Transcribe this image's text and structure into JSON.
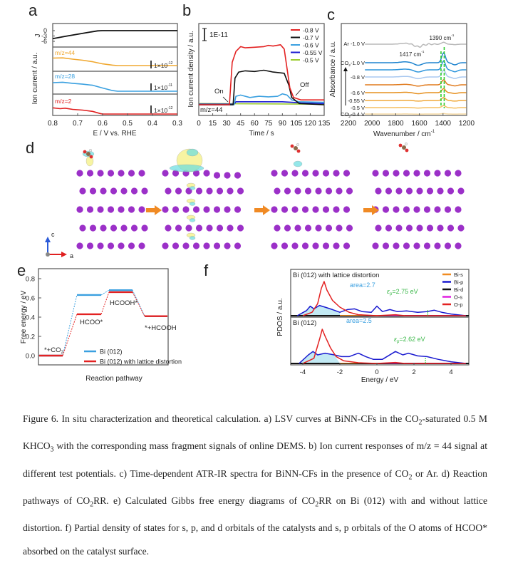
{
  "panel_labels": {
    "a": "a",
    "b": "b",
    "c": "c",
    "d": "d",
    "e": "e",
    "f": "f"
  },
  "chart_data": [
    {
      "panel": "a",
      "type": "line",
      "xlabel": "E / V vs. RHE",
      "ylabel": "Ion current / a.u.",
      "j_label": "J",
      "xlim": [
        0.8,
        0.3
      ],
      "xticks": [
        "0.8",
        "0.7",
        "0.6",
        "0.5",
        "0.4",
        "0.3"
      ],
      "j_ticks": [
        "0",
        "-3",
        "-6"
      ],
      "j_curve": [
        [
          0.8,
          -4.5
        ],
        [
          0.75,
          -3.2
        ],
        [
          0.7,
          -2.0
        ],
        [
          0.65,
          -0.8
        ],
        [
          0.62,
          -0.1
        ],
        [
          0.6,
          0
        ],
        [
          0.3,
          0
        ]
      ],
      "series": [
        {
          "name": "m/z=44",
          "color": "#f0a830",
          "scale": "1×10",
          "exp": "-12",
          "points": [
            [
              0.8,
              0.35
            ],
            [
              0.76,
              0.36
            ],
            [
              0.72,
              0.3
            ],
            [
              0.68,
              0.25
            ],
            [
              0.64,
              0.18
            ],
            [
              0.6,
              0.08
            ],
            [
              0.56,
              0.02
            ],
            [
              0.54,
              0
            ],
            [
              0.3,
              0
            ]
          ]
        },
        {
          "name": "m/z=28",
          "color": "#3aa0e0",
          "scale": "1×10",
          "exp": "-11",
          "points": [
            [
              0.8,
              0.4
            ],
            [
              0.76,
              0.42
            ],
            [
              0.72,
              0.37
            ],
            [
              0.68,
              0.33
            ],
            [
              0.64,
              0.28
            ],
            [
              0.6,
              0.15
            ],
            [
              0.56,
              0.03
            ],
            [
              0.54,
              0
            ],
            [
              0.3,
              0
            ]
          ]
        },
        {
          "name": "m/z=2",
          "color": "#e02020",
          "scale": "1×10",
          "exp": "-12",
          "points": [
            [
              0.8,
              0.35
            ],
            [
              0.77,
              0.3
            ],
            [
              0.75,
              0.33
            ],
            [
              0.72,
              0.26
            ],
            [
              0.68,
              0.22
            ],
            [
              0.64,
              0.15
            ],
            [
              0.61,
              0.03
            ],
            [
              0.6,
              0
            ],
            [
              0.3,
              0
            ]
          ]
        }
      ]
    },
    {
      "panel": "b",
      "type": "line",
      "xlabel": "Time / s",
      "ylabel": "Ion current density / a.u.",
      "xlim": [
        0,
        135
      ],
      "xticks": [
        "0",
        "15",
        "30",
        "45",
        "60",
        "75",
        "90",
        "105",
        "120",
        "135"
      ],
      "scale_bar": "1E-11",
      "annotation": "m/z=44",
      "on_label": "On",
      "off_label": "Off",
      "legend_position": "top-right",
      "series": [
        {
          "name": "-0.8 V",
          "color": "#e32222",
          "points": [
            [
              0,
              0
            ],
            [
              33,
              0
            ],
            [
              36,
              3.5
            ],
            [
              40,
              4.4
            ],
            [
              45,
              4.8
            ],
            [
              50,
              4.7
            ],
            [
              60,
              4.75
            ],
            [
              70,
              4.8
            ],
            [
              75,
              4.9
            ],
            [
              80,
              4.85
            ],
            [
              88,
              4.95
            ],
            [
              92,
              4.6
            ],
            [
              98,
              1.4
            ],
            [
              102,
              0.6
            ],
            [
              110,
              0.4
            ],
            [
              135,
              0.4
            ]
          ]
        },
        {
          "name": "-0.7 V",
          "color": "#111111",
          "points": [
            [
              0,
              0
            ],
            [
              37,
              0
            ],
            [
              39,
              2.2
            ],
            [
              43,
              2.7
            ],
            [
              50,
              2.8
            ],
            [
              60,
              2.75
            ],
            [
              70,
              2.85
            ],
            [
              80,
              2.7
            ],
            [
              92,
              2.6
            ],
            [
              97,
              1.6
            ],
            [
              100,
              0.6
            ],
            [
              108,
              0.1
            ],
            [
              135,
              0
            ]
          ]
        },
        {
          "name": "-0.6 V",
          "color": "#3aa0e0",
          "points": [
            [
              0,
              0
            ],
            [
              38,
              0
            ],
            [
              40,
              0.7
            ],
            [
              45,
              0.8
            ],
            [
              55,
              0.6
            ],
            [
              65,
              0.7
            ],
            [
              75,
              0.65
            ],
            [
              85,
              0.7
            ],
            [
              90,
              0.9
            ],
            [
              95,
              0.8
            ],
            [
              100,
              0.4
            ],
            [
              108,
              0.25
            ],
            [
              135,
              0.2
            ]
          ]
        },
        {
          "name": "-0.55 V",
          "color": "#1a1ad0",
          "points": [
            [
              0,
              0.05
            ],
            [
              38,
              0.05
            ],
            [
              40,
              0.25
            ],
            [
              90,
              0.25
            ],
            [
              100,
              0.2
            ],
            [
              110,
              0.15
            ],
            [
              135,
              0.1
            ]
          ]
        },
        {
          "name": "-0.5 V",
          "color": "#9ccc30",
          "points": [
            [
              0,
              0.1
            ],
            [
              135,
              0.05
            ]
          ]
        }
      ]
    },
    {
      "panel": "c",
      "type": "line",
      "xlabel": "Wavenumber / cm",
      "xlabel_sup": "-1",
      "ylabel": "Absorbance / a.u.",
      "xlim": [
        2200,
        1200
      ],
      "xticks": [
        "2200",
        "2000",
        "1800",
        "1600",
        "1400",
        "1200"
      ],
      "annotations": [
        {
          "text": "1390 cm",
          "sup": "-1"
        },
        {
          "text": "1417 cm",
          "sup": "-1"
        }
      ],
      "series": [
        {
          "name": "Ar -1.0 V",
          "color": "#b8b8b8",
          "peak": 0.2,
          "dip": 0.6,
          "show_label": true
        },
        {
          "name": "CO2-1.0 V",
          "label_main": "CO",
          "label_sub": "2",
          "label_rest": "-1.0 V",
          "color": "#1f84cf",
          "peak": 1.0,
          "dip": 0.6,
          "show_label": true
        },
        {
          "name": "",
          "color": "#2f96dc",
          "peak": 0.9,
          "dip": 0.5,
          "show_label": false
        },
        {
          "name": "-0.8 V",
          "color": "#a8c8f0",
          "peak": 0.7,
          "dip": 0.4,
          "show_label": true
        },
        {
          "name": "",
          "color": "#e07a1c",
          "peak": 0.5,
          "dip": 0.3,
          "show_label": false
        },
        {
          "name": "-0.6 V",
          "color": "#e6901f",
          "peak": 0.4,
          "dip": 0.25,
          "show_label": true
        },
        {
          "name": "-0.55 V",
          "color": "#f0a83a",
          "peak": 0.3,
          "dip": 0.15,
          "show_label": true
        },
        {
          "name": "-0.5 V",
          "color": "#f5bf60",
          "peak": 0.2,
          "dip": 0.1,
          "show_label": true
        },
        {
          "name": "CO2-0.4 V",
          "label_main": "CO",
          "label_sub": "2",
          "label_rest": "-0.4 V",
          "color": "#f5d8a0",
          "peak": 0.05,
          "dip": 0.03,
          "show_label": true
        }
      ]
    },
    {
      "panel": "e",
      "type": "line",
      "xlabel": "Reaction pathway",
      "ylabel": "Free energy / eV",
      "ylim": [
        -0.1,
        0.9
      ],
      "yticks": [
        "0.0",
        "0.2",
        "0.4",
        "0.6",
        "0.8"
      ],
      "states": [
        "*+CO2",
        "HCOO*",
        "HCOOH*",
        "*+HCOOH"
      ],
      "state_labels": [
        {
          "main": "*+CO",
          "sub": "2"
        },
        {
          "main": "HCOO*"
        },
        {
          "main": "HCOOH*"
        },
        {
          "main": "*+HCOOH"
        }
      ],
      "legend_position": "bottom-right",
      "series": [
        {
          "name": "Bi (012)",
          "color": "#3aa0e0",
          "values": [
            0,
            0.63,
            0.68,
            0.41
          ]
        },
        {
          "name": "Bi (012) with lattice distortion",
          "color": "#e32222",
          "values": [
            0,
            0.43,
            0.66,
            0.41
          ]
        }
      ]
    },
    {
      "panel": "f",
      "type": "line",
      "xlabel": "Energy / eV",
      "ylabel": "PDOS / a.u.",
      "xlim": [
        -5,
        5
      ],
      "xticks": [
        "-4",
        "-2",
        "0",
        "2",
        "4"
      ],
      "legend": [
        {
          "name": "Bi-s",
          "color": "#f08c20"
        },
        {
          "name": "Bi-p",
          "color": "#1a1ad0"
        },
        {
          "name": "Bi-d",
          "color": "#111111"
        },
        {
          "name": "O-s",
          "color": "#e020e0"
        },
        {
          "name": "O-p",
          "color": "#e32222"
        }
      ],
      "subplots": [
        {
          "title": "Bi (012) with lattice distortion",
          "area_label": "area=2.7",
          "eps_symbol": "ε",
          "eps_sub": "p",
          "eps_label": "=2.75 eV",
          "eps_value": 2.75,
          "bi_p": [
            [
              -4.3,
              0
            ],
            [
              -3.8,
              0.15
            ],
            [
              -3.6,
              0.28
            ],
            [
              -3.4,
              0.2
            ],
            [
              -3.1,
              0.3
            ],
            [
              -2.8,
              0.25
            ],
            [
              -2.4,
              0.18
            ],
            [
              -2.0,
              0.1
            ],
            [
              -1.6,
              0.18
            ],
            [
              -1.2,
              0.2
            ],
            [
              -0.8,
              0.12
            ],
            [
              -0.3,
              0.1
            ],
            [
              0,
              0.28
            ],
            [
              0.3,
              0.12
            ],
            [
              0.7,
              0.18
            ],
            [
              1.1,
              0.12
            ],
            [
              1.6,
              0.14
            ],
            [
              2.2,
              0.1
            ],
            [
              2.7,
              0.12
            ],
            [
              3.1,
              0.16
            ],
            [
              3.5,
              0.1
            ],
            [
              4.0,
              0.05
            ],
            [
              4.8,
              0
            ]
          ],
          "o_p": [
            [
              -4,
              0
            ],
            [
              -3.5,
              0.1
            ],
            [
              -3.2,
              0.35
            ],
            [
              -3.0,
              0.8
            ],
            [
              -2.85,
              1.0
            ],
            [
              -2.7,
              0.75
            ],
            [
              -2.4,
              0.45
            ],
            [
              -2.0,
              0.25
            ],
            [
              -1.5,
              0.1
            ],
            [
              -1,
              0.03
            ],
            [
              0,
              0
            ],
            [
              1,
              0.03
            ],
            [
              1.5,
              0
            ],
            [
              4.8,
              0
            ]
          ]
        },
        {
          "title": "Bi (012)",
          "area_label": "area=2.5",
          "eps_symbol": "ε",
          "eps_sub": "p",
          "eps_label": "=2.62 eV",
          "eps_value": 2.62,
          "bi_p": [
            [
              -4.2,
              0
            ],
            [
              -3.7,
              0.25
            ],
            [
              -3.45,
              0.35
            ],
            [
              -3.2,
              0.25
            ],
            [
              -2.8,
              0.3
            ],
            [
              -2.3,
              0.25
            ],
            [
              -1.9,
              0.2
            ],
            [
              -1.5,
              0.2
            ],
            [
              -1.0,
              0.3
            ],
            [
              -0.6,
              0.2
            ],
            [
              -0.2,
              0.12
            ],
            [
              0.3,
              0.12
            ],
            [
              1.0,
              0.35
            ],
            [
              1.4,
              0.25
            ],
            [
              1.7,
              0.3
            ],
            [
              2.2,
              0.22
            ],
            [
              2.7,
              0.2
            ],
            [
              3.3,
              0.12
            ],
            [
              4,
              0.05
            ],
            [
              4.8,
              0
            ]
          ],
          "o_p": [
            [
              -4,
              0
            ],
            [
              -3.4,
              0.15
            ],
            [
              -3.1,
              0.7
            ],
            [
              -2.95,
              1.0
            ],
            [
              -2.8,
              0.8
            ],
            [
              -2.5,
              0.45
            ],
            [
              -2.2,
              0.2
            ],
            [
              -1.8,
              0.08
            ],
            [
              -1,
              0.02
            ],
            [
              0,
              0
            ],
            [
              1,
              0.03
            ],
            [
              1.5,
              0
            ],
            [
              4.8,
              0
            ]
          ]
        }
      ]
    }
  ],
  "panel_d": {
    "axis_c": "c",
    "axis_a": "a",
    "atom_color": "#9b30c8",
    "arrow_color": "#f08a24"
  },
  "caption": [
    {
      "t": "Figure 6. In situ characterization and theoretical calculation. a) LSV curves at BiNN-CFs in the CO"
    },
    {
      "t": "2",
      "sub": true
    },
    {
      "t": "-saturated 0.5 M KHCO"
    },
    {
      "t": "3",
      "sub": true
    },
    {
      "t": " with the corresponding mass fragment signals of online DEMS. b) Ion current responses of m/z = 44 signal at different test potentials. c) Time-dependent ATR-IR spectra for BiNN-CFs in the presence of CO"
    },
    {
      "t": "2",
      "sub": true
    },
    {
      "t": " or Ar. d) Reaction pathways of CO"
    },
    {
      "t": "2",
      "sub": true
    },
    {
      "t": "RR. e) Calculated Gibbs free energy diagrams of CO"
    },
    {
      "t": "2",
      "sub": true
    },
    {
      "t": "RR on Bi (012) with and without lattice distortion. f) Partial density of states for s, p, and d orbitals of the catalysts and s, p orbitals of the O atoms of HCOO* absorbed on the catalyst surface."
    }
  ]
}
